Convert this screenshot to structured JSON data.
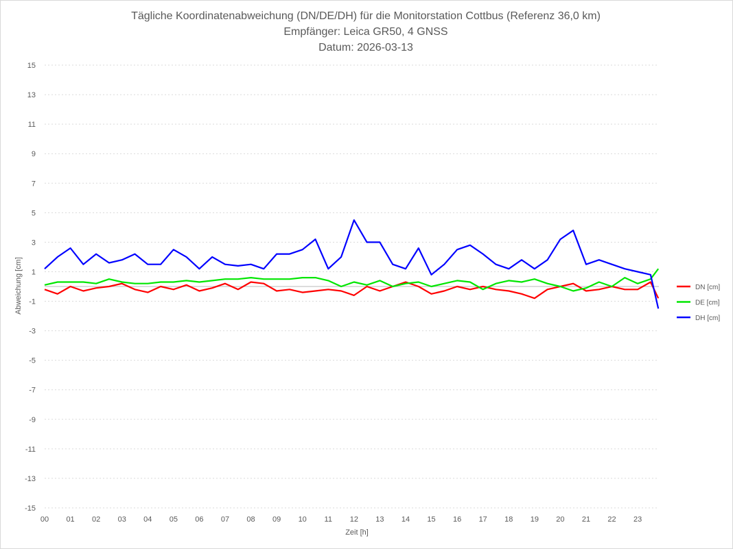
{
  "chart_data": {
    "type": "line",
    "title": [
      "Tägliche Koordinatenabweichung (DN/DE/DH) für die Monitorstation Cottbus (Referenz 36,0 km)",
      "Empfänger: Leica GR50, 4 GNSS",
      "Datum: 2026-03-13"
    ],
    "xlabel": "Zeit [h]",
    "ylabel": "Abweichung [cm]",
    "xlim": [
      0,
      23.8
    ],
    "ylim": [
      -15,
      15
    ],
    "xticks": [
      "00",
      "01",
      "02",
      "03",
      "04",
      "05",
      "06",
      "07",
      "08",
      "09",
      "10",
      "11",
      "12",
      "13",
      "14",
      "15",
      "16",
      "17",
      "18",
      "19",
      "20",
      "21",
      "22",
      "23"
    ],
    "yticks": [
      15,
      13,
      11,
      9,
      7,
      5,
      3,
      1,
      -1,
      -3,
      -5,
      -7,
      -9,
      -11,
      -13,
      -15
    ],
    "grid": true,
    "legend_position": "right",
    "x": [
      0,
      0.5,
      1,
      1.5,
      2,
      2.5,
      3,
      3.5,
      4,
      4.5,
      5,
      5.5,
      6,
      6.5,
      7,
      7.5,
      8,
      8.5,
      9,
      9.5,
      10,
      10.5,
      11,
      11.5,
      12,
      12.5,
      13,
      13.5,
      14,
      14.5,
      15,
      15.5,
      16,
      16.5,
      17,
      17.5,
      18,
      18.5,
      19,
      19.5,
      20,
      20.5,
      21,
      21.5,
      22,
      22.5,
      23,
      23.5,
      23.8
    ],
    "series": [
      {
        "name": "DN [cm]",
        "color": "#ff0000",
        "values": [
          -0.2,
          -0.5,
          0,
          -0.3,
          -0.1,
          0,
          0.2,
          -0.2,
          -0.4,
          0,
          -0.2,
          0.1,
          -0.3,
          -0.1,
          0.2,
          -0.2,
          0.3,
          0.2,
          -0.3,
          -0.2,
          -0.4,
          -0.3,
          -0.2,
          -0.3,
          -0.6,
          0,
          -0.3,
          0,
          0.3,
          0,
          -0.5,
          -0.3,
          0,
          -0.2,
          0,
          -0.2,
          -0.3,
          -0.5,
          -0.8,
          -0.2,
          0,
          0.2,
          -0.3,
          -0.2,
          0,
          -0.2,
          -0.2,
          0.3,
          -0.8
        ]
      },
      {
        "name": "DE [cm]",
        "color": "#00e600",
        "values": [
          0.1,
          0.3,
          0.3,
          0.3,
          0.2,
          0.5,
          0.3,
          0.2,
          0.2,
          0.3,
          0.3,
          0.4,
          0.3,
          0.4,
          0.5,
          0.5,
          0.6,
          0.5,
          0.5,
          0.5,
          0.6,
          0.6,
          0.4,
          0,
          0.3,
          0.1,
          0.4,
          0,
          0.2,
          0.3,
          0,
          0.2,
          0.4,
          0.3,
          -0.2,
          0.2,
          0.4,
          0.3,
          0.5,
          0.2,
          0,
          -0.3,
          -0.1,
          0.3,
          0,
          0.6,
          0.2,
          0.5,
          1.2
        ]
      },
      {
        "name": "DH [cm]",
        "color": "#0000ff",
        "values": [
          1.2,
          2.0,
          2.6,
          1.5,
          2.2,
          1.6,
          1.8,
          2.2,
          1.5,
          1.5,
          2.5,
          2.0,
          1.2,
          2.0,
          1.5,
          1.4,
          1.5,
          1.2,
          2.2,
          2.2,
          2.5,
          3.2,
          1.2,
          2.0,
          4.5,
          3.0,
          3.0,
          1.5,
          1.2,
          2.6,
          0.8,
          1.5,
          2.5,
          2.8,
          2.2,
          1.5,
          1.2,
          1.8,
          1.2,
          1.8,
          3.2,
          3.8,
          1.5,
          1.8,
          1.5,
          1.2,
          1.0,
          0.8,
          -1.5
        ]
      }
    ]
  }
}
